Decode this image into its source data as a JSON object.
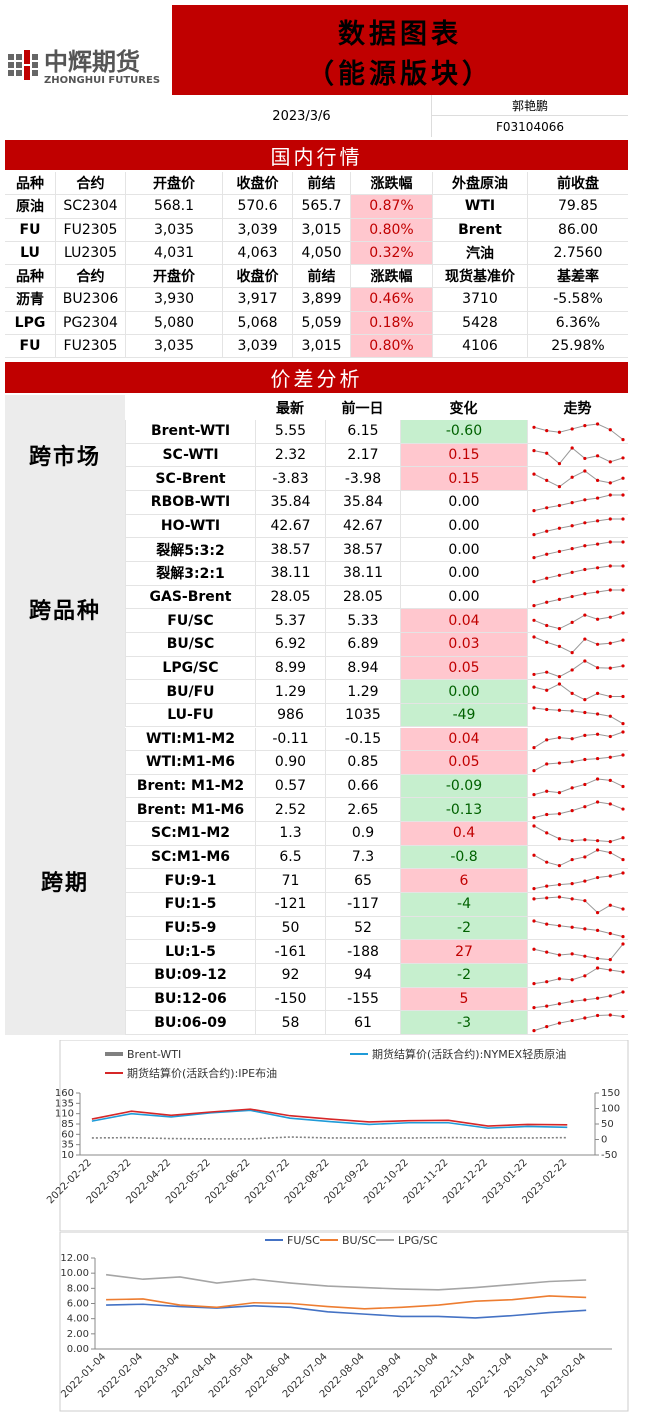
{
  "header": {
    "logo_cn": "中辉期货",
    "logo_en": "ZHONGHUI FUTURES",
    "title": "数据图表",
    "subtitle": "（能源版块）",
    "date": "2023/3/6",
    "author": "郭艳鹏",
    "license": "F03104066"
  },
  "domestic": {
    "title": "国内行情",
    "header1": [
      "品种",
      "合约",
      "开盘价",
      "收盘价",
      "前结",
      "涨跌幅",
      "外盘原油",
      "前收盘"
    ],
    "rows1": [
      [
        "原油",
        "SC2304",
        "568.1",
        "570.6",
        "565.7",
        "0.87%",
        "WTI",
        "79.85"
      ],
      [
        "FU",
        "FU2305",
        "3,035",
        "3,039",
        "3,015",
        "0.80%",
        "Brent",
        "86.00"
      ],
      [
        "LU",
        "LU2305",
        "4,031",
        "4,063",
        "4,050",
        "0.32%",
        "汽油",
        "2.7560"
      ]
    ],
    "header2": [
      "品种",
      "合约",
      "开盘价",
      "收盘价",
      "前结",
      "涨跌幅",
      "现货基准价",
      "基差率"
    ],
    "rows2": [
      [
        "沥青",
        "BU2306",
        "3,930",
        "3,917",
        "3,899",
        "0.46%",
        "3710",
        "-5.58%"
      ],
      [
        "LPG",
        "PG2304",
        "5,080",
        "5,068",
        "5,059",
        "0.18%",
        "5428",
        "6.36%"
      ],
      [
        "FU",
        "FU2305",
        "3,035",
        "3,039",
        "3,015",
        "0.80%",
        "4106",
        "25.98%"
      ]
    ]
  },
  "spread": {
    "title": "价差分析",
    "header": [
      "最新",
      "前一日",
      "变化",
      "走势"
    ],
    "groups": [
      {
        "name": "跨市场",
        "from": 0,
        "to": 2
      },
      {
        "name": "跨品种",
        "from": 3,
        "to": 12
      },
      {
        "name": "跨期",
        "from": 13,
        "to": 25
      }
    ],
    "rows": [
      {
        "label": "Brent-WTI",
        "latest": "5.55",
        "prev": "6.15",
        "change": "-0.60",
        "fill": "#c6efce",
        "text_color": "#006100",
        "trend": [
          6.3,
          6.1,
          6.0,
          6.2,
          6.4,
          6.5,
          6.15,
          5.55
        ]
      },
      {
        "label": "SC-WTI",
        "latest": "2.32",
        "prev": "2.17",
        "change": "0.15",
        "fill": "#ffc7ce",
        "text_color": "#c00000",
        "trend": [
          2.6,
          2.5,
          2.1,
          2.7,
          2.3,
          2.4,
          2.17,
          2.32
        ]
      },
      {
        "label": "SC-Brent",
        "latest": "-3.83",
        "prev": "-3.98",
        "change": "0.15",
        "fill": "#ffc7ce",
        "text_color": "#c00000",
        "trend": [
          -3.7,
          -3.9,
          -4.1,
          -3.8,
          -3.6,
          -3.9,
          -3.98,
          -3.83
        ]
      },
      {
        "label": "RBOB-WTI",
        "latest": "35.84",
        "prev": "35.84",
        "change": "0.00",
        "fill": "#ffffff",
        "text_color": "#000000",
        "trend": [
          33.1,
          33.6,
          34.0,
          34.5,
          35.0,
          35.3,
          35.84,
          35.84
        ]
      },
      {
        "label": "HO-WTI",
        "latest": "42.67",
        "prev": "42.67",
        "change": "0.00",
        "fill": "#ffffff",
        "text_color": "#000000",
        "trend": [
          39.5,
          40.2,
          40.8,
          41.3,
          41.9,
          42.3,
          42.67,
          42.67
        ]
      },
      {
        "label": "裂解5:3:2",
        "latest": "38.57",
        "prev": "38.57",
        "change": "0.00",
        "fill": "#ffffff",
        "text_color": "#000000",
        "trend": [
          35.8,
          36.4,
          36.9,
          37.4,
          37.9,
          38.2,
          38.57,
          38.57
        ]
      },
      {
        "label": "裂解3:2:1",
        "latest": "38.11",
        "prev": "38.11",
        "change": "0.00",
        "fill": "#ffffff",
        "text_color": "#000000",
        "trend": [
          35.4,
          36.0,
          36.5,
          37.0,
          37.5,
          37.8,
          38.11,
          38.11
        ]
      },
      {
        "label": "GAS-Brent",
        "latest": "28.05",
        "prev": "28.05",
        "change": "0.00",
        "fill": "#ffffff",
        "text_color": "#000000",
        "trend": [
          25.3,
          25.9,
          26.4,
          26.9,
          27.4,
          27.7,
          28.05,
          28.05
        ]
      },
      {
        "label": "FU/SC",
        "latest": "5.37",
        "prev": "5.33",
        "change": "0.04",
        "fill": "#ffc7ce",
        "text_color": "#c00000",
        "trend": [
          5.3,
          5.25,
          5.22,
          5.28,
          5.35,
          5.31,
          5.33,
          5.37
        ]
      },
      {
        "label": "BU/SC",
        "latest": "6.92",
        "prev": "6.89",
        "change": "0.03",
        "fill": "#ffc7ce",
        "text_color": "#c00000",
        "trend": [
          6.95,
          6.9,
          6.86,
          6.8,
          6.93,
          6.88,
          6.89,
          6.92
        ]
      },
      {
        "label": "LPG/SC",
        "latest": "8.99",
        "prev": "8.94",
        "change": "0.05",
        "fill": "#ffc7ce",
        "text_color": "#c00000",
        "trend": [
          8.8,
          8.85,
          8.75,
          8.9,
          9.1,
          8.95,
          8.94,
          8.99
        ]
      },
      {
        "label": "BU/FU",
        "latest": "1.29",
        "prev": "1.29",
        "change": "0.00",
        "fill": "#c6efce",
        "text_color": "#006100",
        "trend": [
          1.32,
          1.31,
          1.33,
          1.3,
          1.28,
          1.3,
          1.29,
          1.29
        ]
      },
      {
        "label": "LU-FU",
        "latest": "986",
        "prev": "1035",
        "change": "-49",
        "fill": "#c6efce",
        "text_color": "#006100",
        "trend": [
          1090,
          1080,
          1075,
          1070,
          1060,
          1050,
          1035,
          986
        ]
      },
      {
        "label": "WTI:M1-M2",
        "latest": "-0.11",
        "prev": "-0.15",
        "change": "0.04",
        "fill": "#ffc7ce",
        "text_color": "#c00000",
        "trend": [
          -0.25,
          -0.18,
          -0.16,
          -0.17,
          -0.14,
          -0.13,
          -0.15,
          -0.11
        ]
      },
      {
        "label": "WTI:M1-M6",
        "latest": "0.90",
        "prev": "0.85",
        "change": "0.05",
        "fill": "#ffc7ce",
        "text_color": "#c00000",
        "trend": [
          0.55,
          0.7,
          0.72,
          0.75,
          0.8,
          0.82,
          0.85,
          0.9
        ]
      },
      {
        "label": "Brent: M1-M2",
        "latest": "0.57",
        "prev": "0.66",
        "change": "-0.09",
        "fill": "#c6efce",
        "text_color": "#006100",
        "trend": [
          0.45,
          0.5,
          0.48,
          0.55,
          0.6,
          0.68,
          0.66,
          0.57
        ]
      },
      {
        "label": "Brent: M1-M6",
        "latest": "2.52",
        "prev": "2.65",
        "change": "-0.13",
        "fill": "#c6efce",
        "text_color": "#006100",
        "trend": [
          2.3,
          2.38,
          2.4,
          2.48,
          2.58,
          2.7,
          2.65,
          2.52
        ]
      },
      {
        "label": "SC:M1-M2",
        "latest": "1.3",
        "prev": "0.9",
        "change": "0.4",
        "fill": "#ffc7ce",
        "text_color": "#c00000",
        "trend": [
          2.5,
          1.8,
          1.2,
          1.0,
          1.1,
          1.0,
          0.9,
          1.3
        ]
      },
      {
        "label": "SC:M1-M6",
        "latest": "6.5",
        "prev": "7.3",
        "change": "-0.8",
        "fill": "#c6efce",
        "text_color": "#006100",
        "trend": [
          7.0,
          6.2,
          5.8,
          6.5,
          6.8,
          7.6,
          7.3,
          6.5
        ]
      },
      {
        "label": "FU:9-1",
        "latest": "71",
        "prev": "65",
        "change": "6",
        "fill": "#ffc7ce",
        "text_color": "#c00000",
        "trend": [
          40,
          45,
          48,
          50,
          55,
          62,
          65,
          71
        ]
      },
      {
        "label": "FU:1-5",
        "latest": "-121",
        "prev": "-117",
        "change": "-4",
        "fill": "#c6efce",
        "text_color": "#006100",
        "trend": [
          -110,
          -109,
          -108,
          -110,
          -112,
          -125,
          -117,
          -121
        ]
      },
      {
        "label": "FU:5-9",
        "latest": "50",
        "prev": "52",
        "change": "-2",
        "fill": "#c6efce",
        "text_color": "#006100",
        "trend": [
          60,
          58,
          57,
          56,
          55,
          54,
          52,
          50
        ]
      },
      {
        "label": "LU:1-5",
        "latest": "-161",
        "prev": "-188",
        "change": "27",
        "fill": "#ffc7ce",
        "text_color": "#c00000",
        "trend": [
          -170,
          -175,
          -180,
          -178,
          -182,
          -186,
          -188,
          -161
        ]
      },
      {
        "label": "BU:09-12",
        "latest": "92",
        "prev": "94",
        "change": "-2",
        "fill": "#c6efce",
        "text_color": "#006100",
        "trend": [
          80,
          82,
          85,
          84,
          88,
          96,
          94,
          92
        ]
      },
      {
        "label": "BU:12-06",
        "latest": "-150",
        "prev": "-155",
        "change": "5",
        "fill": "#ffc7ce",
        "text_color": "#c00000",
        "trend": [
          -170,
          -168,
          -165,
          -162,
          -160,
          -158,
          -155,
          -150
        ]
      },
      {
        "label": "BU:06-09",
        "latest": "58",
        "prev": "61",
        "change": "-3",
        "fill": "#c6efce",
        "text_color": "#006100",
        "trend": [
          30,
          38,
          45,
          50,
          55,
          60,
          61,
          58
        ]
      }
    ]
  },
  "charts": [
    {
      "type": "line",
      "x": [
        "2022-02-22",
        "2022-03-22",
        "2022-04-22",
        "2022-05-22",
        "2022-06-22",
        "2022-07-22",
        "2022-08-22",
        "2022-09-22",
        "2022-10-22",
        "2022-11-22",
        "2022-12-22",
        "2023-01-22",
        "2023-02-22"
      ],
      "ylim": [
        10,
        160
      ],
      "yticks": [
        10,
        35,
        60,
        85,
        110,
        135,
        160
      ],
      "y2lim": [
        -50,
        150
      ],
      "y2ticks": [
        -50,
        0,
        50,
        100,
        150
      ],
      "series": [
        {
          "name": "Brent-WTI",
          "color": "#808080",
          "axis": "y2",
          "values": [
            5,
            6,
            3,
            2,
            2,
            8,
            5,
            5,
            5,
            6,
            5,
            5,
            6
          ]
        },
        {
          "name": "期货结算价(活跃合约):NYMEX轻质原油",
          "color": "#1f9bd8",
          "values": [
            92,
            110,
            102,
            112,
            118,
            99,
            91,
            84,
            88,
            88,
            75,
            79,
            77
          ]
        },
        {
          "name": "期货结算价(活跃合约):IPE布油",
          "color": "#d62728",
          "values": [
            97,
            116,
            106,
            114,
            121,
            105,
            97,
            90,
            93,
            94,
            80,
            84,
            83
          ]
        }
      ]
    },
    {
      "type": "line",
      "x": [
        "2022-01-04",
        "2022-02-04",
        "2022-03-04",
        "2022-04-04",
        "2022-05-04",
        "2022-06-04",
        "2022-07-04",
        "2022-08-04",
        "2022-09-04",
        "2022-10-04",
        "2022-11-04",
        "2022-12-04",
        "2023-01-04",
        "2023-02-04"
      ],
      "ylim": [
        0,
        12
      ],
      "yticks": [
        {
          "value": 0,
          "label": "0.00"
        },
        {
          "value": 2,
          "label": "2.00"
        },
        {
          "value": 4,
          "label": "4.00"
        },
        {
          "value": 6,
          "label": "6.00"
        },
        {
          "value": 8,
          "label": "8.00"
        },
        {
          "value": 10,
          "label": "10.00"
        },
        {
          "value": 12,
          "label": "12.00"
        }
      ],
      "series": [
        {
          "name": "FU/SC",
          "color": "#4472c4",
          "values": [
            5.8,
            5.9,
            5.6,
            5.4,
            5.7,
            5.5,
            4.9,
            4.6,
            4.3,
            4.3,
            4.1,
            4.4,
            4.8,
            5.1
          ]
        },
        {
          "name": "BU/SC",
          "color": "#ed7d31",
          "values": [
            6.5,
            6.6,
            5.8,
            5.5,
            6.1,
            6.0,
            5.6,
            5.3,
            5.5,
            5.8,
            6.3,
            6.5,
            7.0,
            6.8
          ]
        },
        {
          "name": "LPG/SC",
          "color": "#a5a5a5",
          "values": [
            9.8,
            9.2,
            9.5,
            8.7,
            9.2,
            8.7,
            8.3,
            8.1,
            7.9,
            7.8,
            8.1,
            8.5,
            8.9,
            9.1
          ]
        }
      ]
    }
  ]
}
